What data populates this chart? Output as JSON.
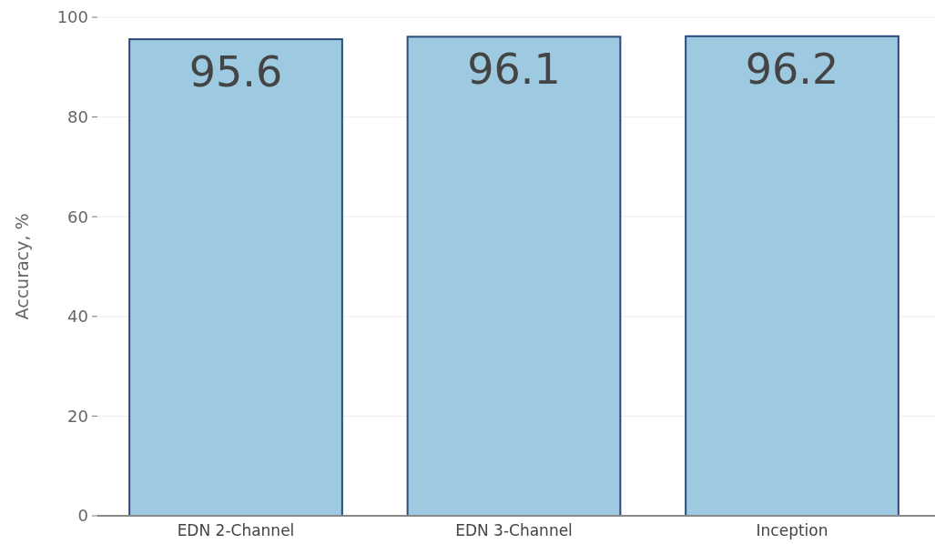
{
  "chart_data": {
    "type": "bar",
    "ylabel": "Accuracy, %",
    "categories": [
      "EDN 2-Channel",
      "EDN 3-Channel",
      "Inception"
    ],
    "values": [
      95.6,
      96.1,
      96.2
    ],
    "color": "#9ecae1",
    "ylim": [
      0,
      100
    ],
    "yticks": [
      0,
      20,
      40,
      60,
      80,
      100
    ],
    "grid": "y",
    "data_labels": true
  }
}
